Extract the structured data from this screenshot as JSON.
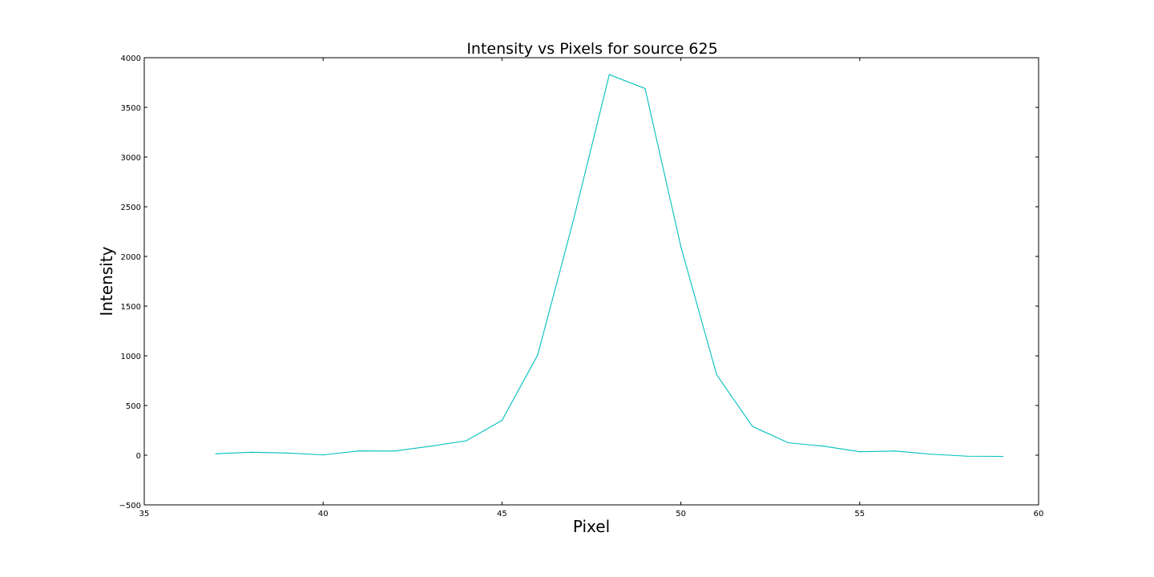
{
  "chart_data": {
    "type": "line",
    "title": "Intensity vs Pixels for source 625",
    "xlabel": "Pixel",
    "ylabel": "Intensity",
    "xlim": [
      35,
      60
    ],
    "ylim": [
      -500,
      4000
    ],
    "x_ticks": [
      35,
      40,
      45,
      50,
      55,
      60
    ],
    "y_ticks": [
      -500,
      0,
      500,
      1000,
      1500,
      2000,
      2500,
      3000,
      3500,
      4000
    ],
    "x_tick_labels": [
      "35",
      "40",
      "45",
      "50",
      "55",
      "60"
    ],
    "y_tick_labels": [
      "−500",
      "0",
      "500",
      "1000",
      "1500",
      "2000",
      "2500",
      "3000",
      "3500",
      "4000"
    ],
    "grid": false,
    "series": [
      {
        "name": "source 625",
        "color": "#00bfbf",
        "x": [
          37,
          38,
          39,
          40,
          41,
          42,
          43,
          44,
          45,
          46,
          47,
          48,
          49,
          50,
          51,
          52,
          53,
          54,
          55,
          56,
          57,
          58,
          59
        ],
        "y": [
          15,
          30,
          22,
          3,
          43,
          42,
          90,
          145,
          350,
          1010,
          2370,
          3830,
          3690,
          2100,
          810,
          290,
          125,
          90,
          35,
          42,
          10,
          -10,
          -12
        ]
      }
    ]
  }
}
